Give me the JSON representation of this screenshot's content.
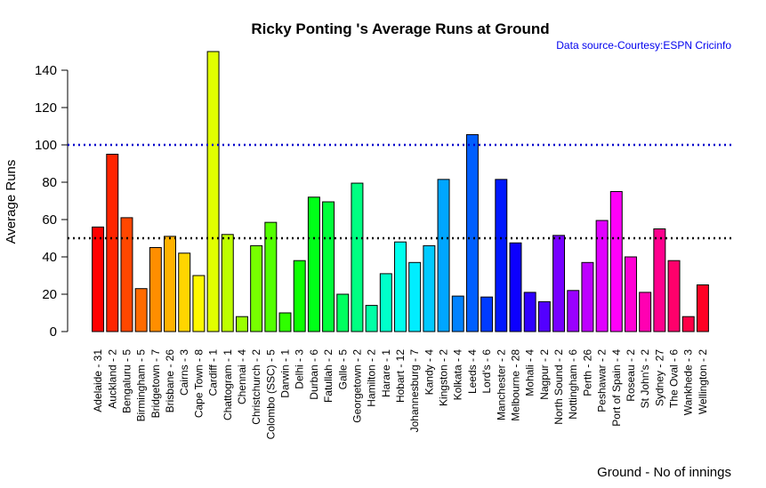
{
  "chart_data": {
    "type": "bar",
    "title": "Ricky Ponting 's Average Runs at Ground",
    "subtitle": "Data source-Courtesy:ESPN Cricinfo",
    "xlabel": "Ground - No of innings",
    "ylabel": "Average Runs",
    "ylim": [
      0,
      150
    ],
    "yticks": [
      0,
      20,
      40,
      60,
      80,
      100,
      120,
      140
    ],
    "reference_lines": [
      {
        "y": 100,
        "style": "dotted",
        "color": "#0000cc"
      },
      {
        "y": 50,
        "style": "dotted",
        "color": "#000000"
      }
    ],
    "color_scheme": "rainbow",
    "categories": [
      "Adelaide - 31",
      "Auckland - 2",
      "Bengaluru - 5",
      "Birmingham - 5",
      "Bridgetown - 7",
      "Brisbane - 26",
      "Cairns - 3",
      "Cape Town - 8",
      "Cardiff - 1",
      "Chattogram - 1",
      "Chennai - 4",
      "Christchurch - 2",
      "Colombo (SSC) - 5",
      "Darwin - 1",
      "Delhi - 3",
      "Durban - 6",
      "Fatullah - 2",
      "Galle - 5",
      "Georgetown - 2",
      "Hamilton - 2",
      "Harare - 1",
      "Hobart - 12",
      "Johannesburg - 7",
      "Kandy - 4",
      "Kingston - 2",
      "Kolkata - 4",
      "Leeds - 4",
      "Lord's - 6",
      "Manchester - 2",
      "Melbourne - 28",
      "Mohali - 4",
      "Nagpur - 2",
      "North Sound - 2",
      "Nottingham - 6",
      "Perth - 26",
      "Peshawar - 2",
      "Port of Spain - 4",
      "Roseau - 2",
      "St John's - 2",
      "Sydney - 27",
      "The Oval - 6",
      "Wankhede - 3",
      "Wellington - 2"
    ],
    "values": [
      56,
      95,
      61,
      23,
      45,
      51,
      42,
      30,
      150,
      52,
      8,
      46,
      58.5,
      10,
      38,
      72,
      69.5,
      20,
      79.5,
      14,
      31,
      48,
      37,
      46,
      81.5,
      19,
      105.5,
      18.5,
      81.5,
      47.5,
      21,
      16,
      51.5,
      22,
      37,
      59.5,
      75,
      40,
      21,
      55,
      38,
      8,
      25
    ]
  }
}
